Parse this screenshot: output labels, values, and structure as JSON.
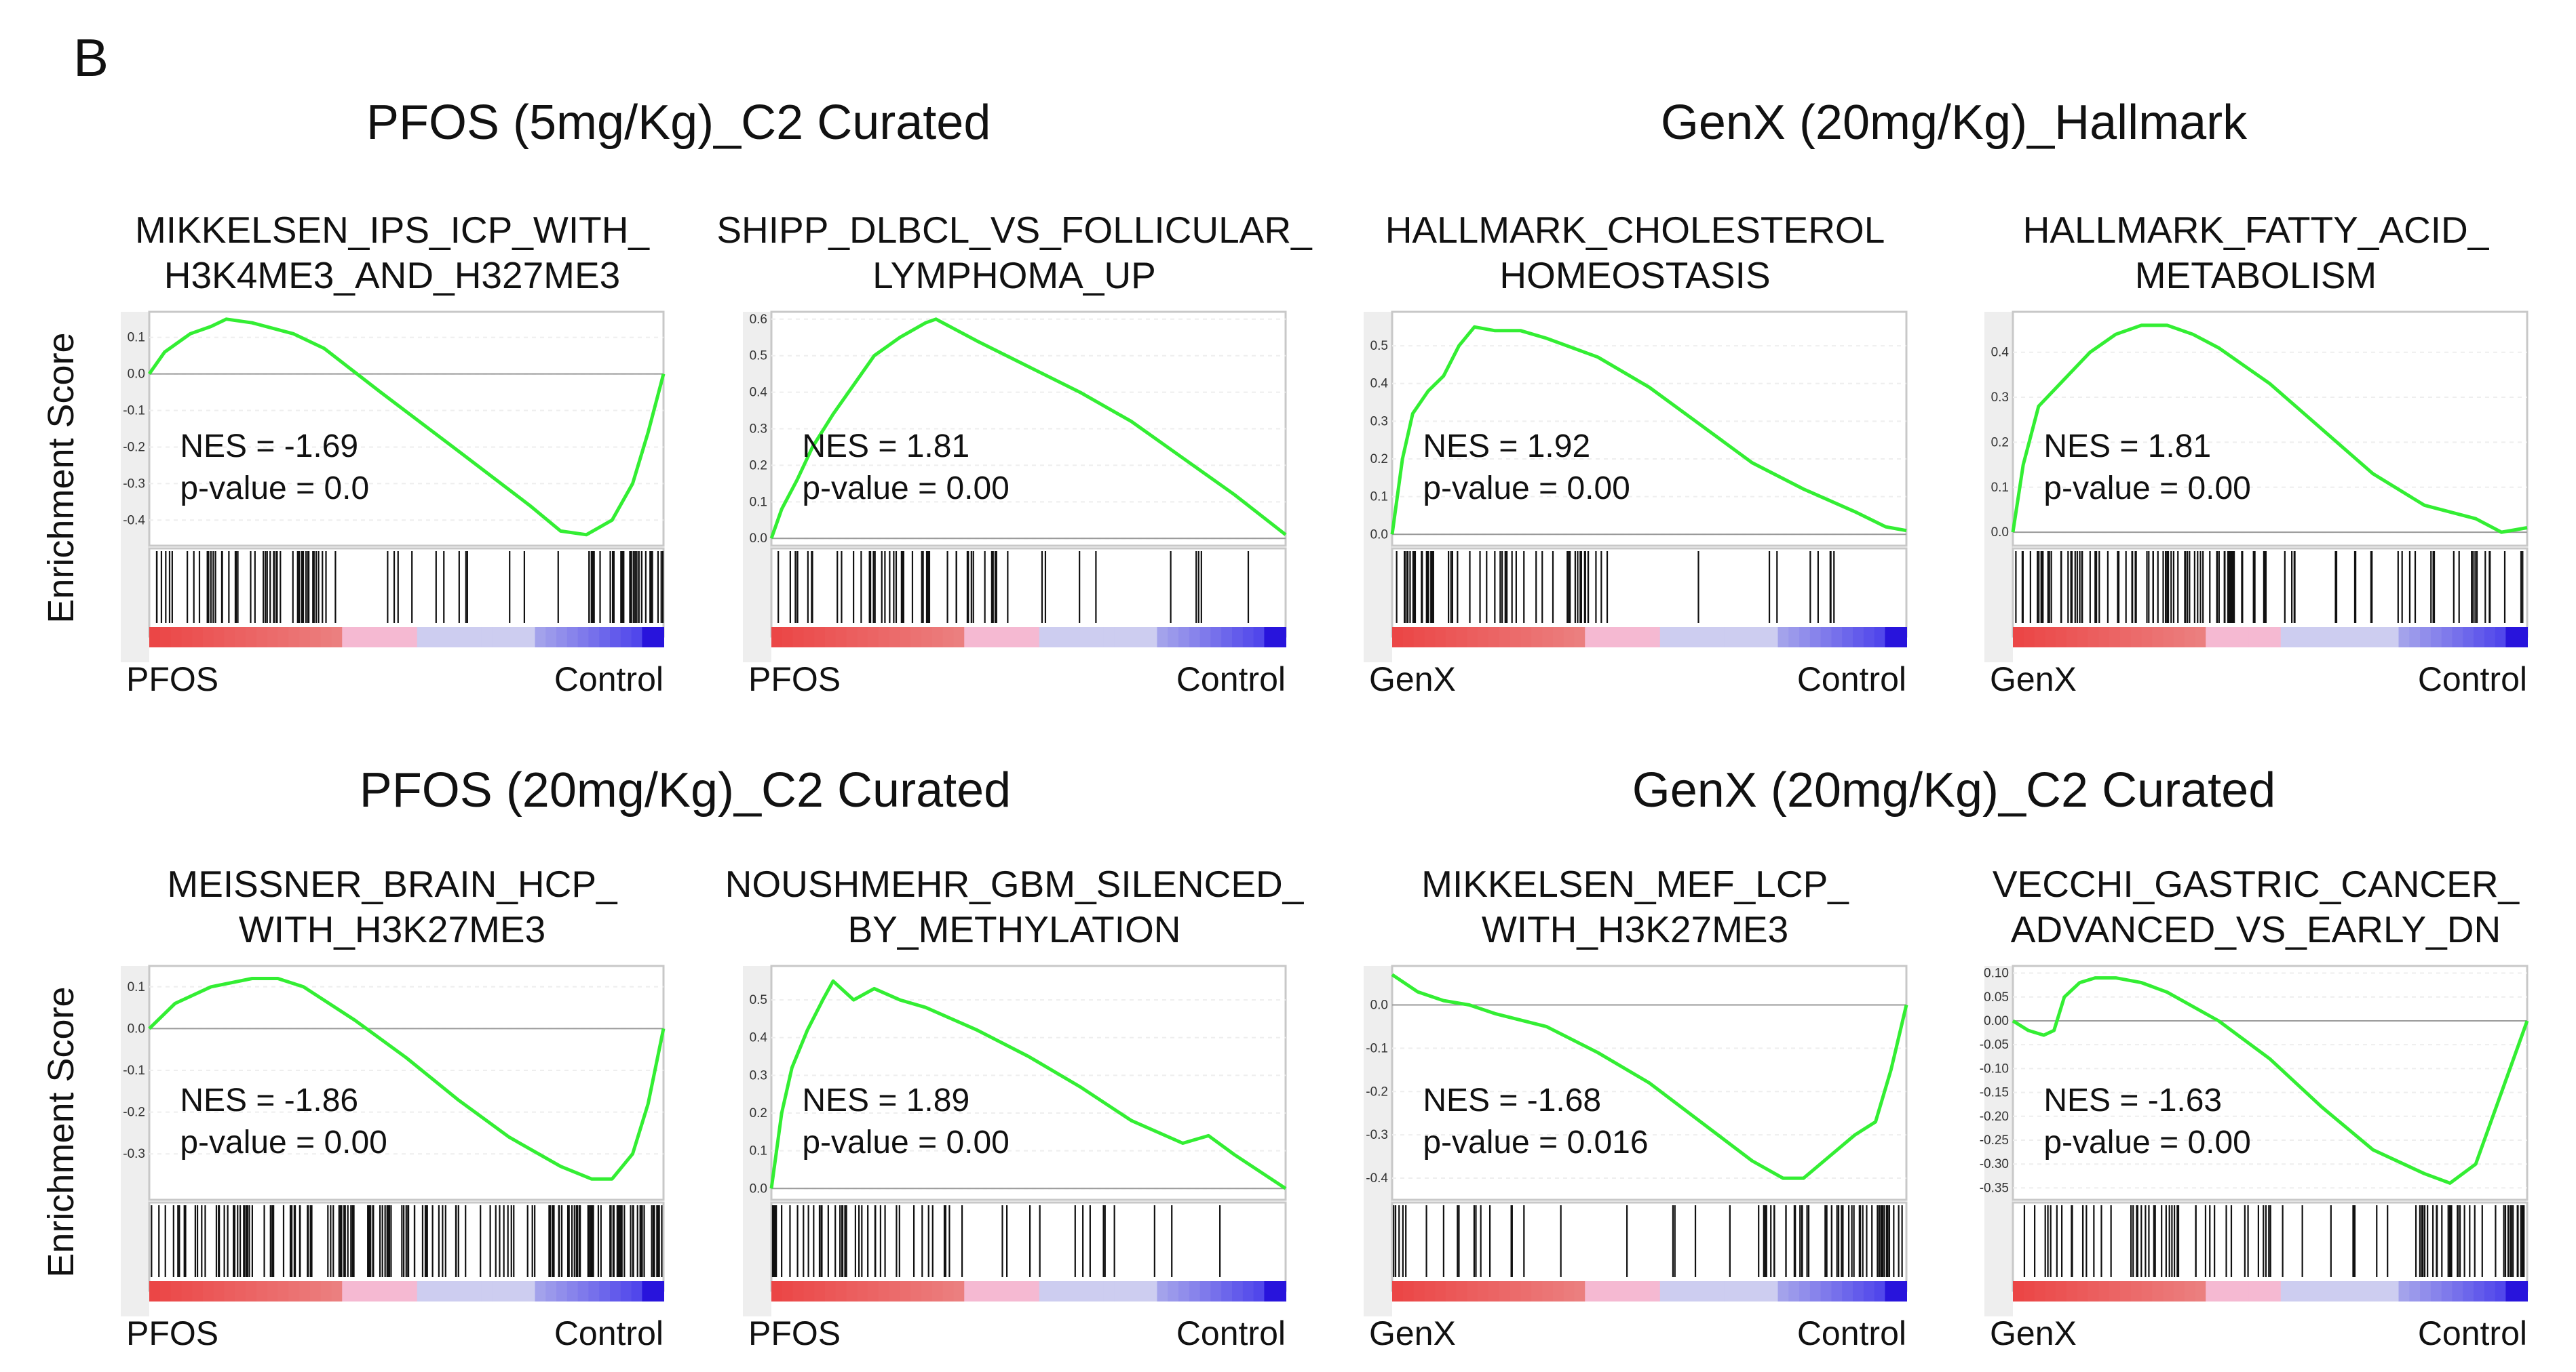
{
  "panel_letter": "B",
  "colors": {
    "curve": "#33ee33",
    "hit": "#111111",
    "frame": "#c8c8c8",
    "zero": "#9a9a9a"
  },
  "group_titles": [
    "PFOS (5mg/Kg)_C2 Curated",
    "GenX (20mg/Kg)_Hallmark",
    "PFOS (20mg/Kg)_C2 Curated",
    "GenX (20mg/Kg)_C2 Curated"
  ],
  "ylabel": "Enrichment Score",
  "chart_data": [
    {
      "type": "line",
      "title_lines": [
        "MIKKELSEN_IPS_ICP_WITH_",
        "H3K4ME3_AND_H327ME3"
      ],
      "nes": "NES = -1.69",
      "pvalue": "p-value = 0.0",
      "xlabel_left": "PFOS",
      "xlabel_right": "Control",
      "ylim": [
        -0.47,
        0.17
      ],
      "yticks": [
        0.1,
        0.0,
        -0.1,
        -0.2,
        -0.3,
        -0.4
      ],
      "ytick_labels": [
        "0.1",
        "0.0",
        "-0.1",
        "-0.2",
        "-0.3",
        "-0.4"
      ],
      "curve": [
        [
          0,
          0.0
        ],
        [
          0.03,
          0.06
        ],
        [
          0.08,
          0.11
        ],
        [
          0.12,
          0.13
        ],
        [
          0.15,
          0.15
        ],
        [
          0.2,
          0.14
        ],
        [
          0.28,
          0.11
        ],
        [
          0.34,
          0.07
        ],
        [
          0.45,
          -0.05
        ],
        [
          0.6,
          -0.21
        ],
        [
          0.74,
          -0.36
        ],
        [
          0.8,
          -0.43
        ],
        [
          0.85,
          -0.44
        ],
        [
          0.9,
          -0.4
        ],
        [
          0.94,
          -0.3
        ],
        [
          0.97,
          -0.16
        ],
        [
          1.0,
          0.0
        ]
      ],
      "hit_dens": [
        [
          0,
          0.38,
          0.34
        ],
        [
          0.38,
          0.85,
          0.07
        ],
        [
          0.85,
          1.0,
          0.6
        ]
      ]
    },
    {
      "type": "line",
      "title_lines": [
        "SHIPP_DLBCL_VS_FOLLICULAR_",
        "LYMPHOMA_UP"
      ],
      "nes": "NES = 1.81",
      "pvalue": "p-value = 0.00",
      "xlabel_left": "PFOS",
      "xlabel_right": "Control",
      "ylim": [
        -0.02,
        0.62
      ],
      "yticks": [
        0.6,
        0.5,
        0.4,
        0.3,
        0.2,
        0.1,
        0.0
      ],
      "ytick_labels": [
        "0.6",
        "0.5",
        "0.4",
        "0.3",
        "0.2",
        "0.1",
        "0.0"
      ],
      "curve": [
        [
          0,
          0.0
        ],
        [
          0.02,
          0.08
        ],
        [
          0.05,
          0.16
        ],
        [
          0.08,
          0.25
        ],
        [
          0.12,
          0.34
        ],
        [
          0.16,
          0.42
        ],
        [
          0.2,
          0.5
        ],
        [
          0.25,
          0.55
        ],
        [
          0.3,
          0.59
        ],
        [
          0.32,
          0.6
        ],
        [
          0.4,
          0.54
        ],
        [
          0.5,
          0.47
        ],
        [
          0.6,
          0.4
        ],
        [
          0.7,
          0.32
        ],
        [
          0.8,
          0.22
        ],
        [
          0.9,
          0.12
        ],
        [
          1.0,
          0.01
        ]
      ],
      "hit_dens": [
        [
          0,
          0.45,
          0.26
        ],
        [
          0.45,
          0.85,
          0.06
        ],
        [
          0.85,
          1.0,
          0.01
        ]
      ]
    },
    {
      "type": "line",
      "title_lines": [
        "HALLMARK_CHOLESTEROL",
        "HOMEOSTASIS"
      ],
      "nes": "NES = 1.92",
      "pvalue": "p-value = 0.00",
      "xlabel_left": "GenX",
      "xlabel_right": "Control",
      "ylim": [
        -0.03,
        0.59
      ],
      "yticks": [
        0.5,
        0.4,
        0.3,
        0.2,
        0.1,
        0.0
      ],
      "ytick_labels": [
        "0.5",
        "0.4",
        "0.3",
        "0.2",
        "0.1",
        "0.0"
      ],
      "curve": [
        [
          0,
          0.0
        ],
        [
          0.02,
          0.2
        ],
        [
          0.04,
          0.32
        ],
        [
          0.07,
          0.38
        ],
        [
          0.1,
          0.42
        ],
        [
          0.13,
          0.5
        ],
        [
          0.16,
          0.55
        ],
        [
          0.2,
          0.54
        ],
        [
          0.25,
          0.54
        ],
        [
          0.3,
          0.52
        ],
        [
          0.4,
          0.47
        ],
        [
          0.5,
          0.39
        ],
        [
          0.6,
          0.29
        ],
        [
          0.7,
          0.19
        ],
        [
          0.8,
          0.12
        ],
        [
          0.9,
          0.06
        ],
        [
          0.96,
          0.02
        ],
        [
          1.0,
          0.01
        ]
      ],
      "hit_dens": [
        [
          0,
          0.42,
          0.32
        ],
        [
          0.42,
          0.7,
          0.01
        ],
        [
          0.7,
          1.0,
          0.06
        ]
      ]
    },
    {
      "type": "line",
      "title_lines": [
        "HALLMARK_FATTY_ACID_",
        "METABOLISM"
      ],
      "nes": "NES = 1.81",
      "pvalue": "p-value = 0.00",
      "xlabel_left": "GenX",
      "xlabel_right": "Control",
      "ylim": [
        -0.03,
        0.49
      ],
      "yticks": [
        0.4,
        0.3,
        0.2,
        0.1,
        0.0
      ],
      "ytick_labels": [
        "0.4",
        "0.3",
        "0.2",
        "0.1",
        "0.0"
      ],
      "curve": [
        [
          0,
          0.0
        ],
        [
          0.02,
          0.15
        ],
        [
          0.05,
          0.28
        ],
        [
          0.1,
          0.34
        ],
        [
          0.15,
          0.4
        ],
        [
          0.2,
          0.44
        ],
        [
          0.25,
          0.46
        ],
        [
          0.3,
          0.46
        ],
        [
          0.35,
          0.44
        ],
        [
          0.4,
          0.41
        ],
        [
          0.5,
          0.33
        ],
        [
          0.6,
          0.23
        ],
        [
          0.7,
          0.13
        ],
        [
          0.8,
          0.06
        ],
        [
          0.9,
          0.03
        ],
        [
          0.95,
          0.0
        ],
        [
          1.0,
          0.01
        ]
      ],
      "hit_dens": [
        [
          0,
          0.5,
          0.42
        ],
        [
          0.5,
          0.8,
          0.12
        ],
        [
          0.8,
          1.0,
          0.2
        ]
      ]
    },
    {
      "type": "line",
      "title_lines": [
        "MEISSNER_BRAIN_HCP_",
        "WITH_H3K27ME3"
      ],
      "nes": "NES = -1.86",
      "pvalue": "p-value = 0.00",
      "xlabel_left": "PFOS",
      "xlabel_right": "Control",
      "ylim": [
        -0.41,
        0.15
      ],
      "yticks": [
        0.1,
        0.0,
        -0.1,
        -0.2,
        -0.3
      ],
      "ytick_labels": [
        "0.1",
        "0.0",
        "-0.1",
        "-0.2",
        "-0.3"
      ],
      "curve": [
        [
          0,
          0.0
        ],
        [
          0.05,
          0.06
        ],
        [
          0.12,
          0.1
        ],
        [
          0.2,
          0.12
        ],
        [
          0.25,
          0.12
        ],
        [
          0.3,
          0.1
        ],
        [
          0.4,
          0.02
        ],
        [
          0.5,
          -0.07
        ],
        [
          0.6,
          -0.17
        ],
        [
          0.7,
          -0.26
        ],
        [
          0.8,
          -0.33
        ],
        [
          0.86,
          -0.36
        ],
        [
          0.9,
          -0.36
        ],
        [
          0.94,
          -0.3
        ],
        [
          0.97,
          -0.18
        ],
        [
          1.0,
          0.0
        ]
      ],
      "hit_dens": [
        [
          0,
          0.55,
          0.4
        ],
        [
          0.55,
          0.78,
          0.24
        ],
        [
          0.78,
          1.0,
          0.7
        ]
      ]
    },
    {
      "type": "line",
      "title_lines": [
        "NOUSHMEHR_GBM_SILENCED_",
        "BY_METHYLATION"
      ],
      "nes": "NES = 1.89",
      "pvalue": "p-value = 0.00",
      "xlabel_left": "PFOS",
      "xlabel_right": "Control",
      "ylim": [
        -0.03,
        0.59
      ],
      "yticks": [
        0.5,
        0.4,
        0.3,
        0.2,
        0.1,
        0.0
      ],
      "ytick_labels": [
        "0.5",
        "0.4",
        "0.3",
        "0.2",
        "0.1",
        "0.0"
      ],
      "curve": [
        [
          0,
          0.0
        ],
        [
          0.02,
          0.2
        ],
        [
          0.04,
          0.32
        ],
        [
          0.07,
          0.42
        ],
        [
          0.1,
          0.5
        ],
        [
          0.12,
          0.55
        ],
        [
          0.16,
          0.5
        ],
        [
          0.2,
          0.53
        ],
        [
          0.25,
          0.5
        ],
        [
          0.3,
          0.48
        ],
        [
          0.4,
          0.42
        ],
        [
          0.5,
          0.35
        ],
        [
          0.6,
          0.27
        ],
        [
          0.7,
          0.18
        ],
        [
          0.8,
          0.12
        ],
        [
          0.85,
          0.14
        ],
        [
          0.9,
          0.09
        ],
        [
          1.0,
          0.0
        ]
      ],
      "hit_dens": [
        [
          0,
          0.35,
          0.3
        ],
        [
          0.35,
          0.7,
          0.08
        ],
        [
          0.7,
          1.0,
          0.03
        ]
      ]
    },
    {
      "type": "line",
      "title_lines": [
        "MIKKELSEN_MEF_LCP_",
        "WITH_H3K27ME3"
      ],
      "nes": "NES = -1.68",
      "pvalue": "p-value = 0.016",
      "xlabel_left": "GenX",
      "xlabel_right": "Control",
      "ylim": [
        -0.45,
        0.09
      ],
      "yticks": [
        0.0,
        -0.1,
        -0.2,
        -0.3,
        -0.4
      ],
      "ytick_labels": [
        "0.0",
        "-0.1",
        "-0.2",
        "-0.3",
        "-0.4"
      ],
      "curve": [
        [
          0,
          0.07
        ],
        [
          0.05,
          0.03
        ],
        [
          0.1,
          0.01
        ],
        [
          0.15,
          0.0
        ],
        [
          0.2,
          -0.02
        ],
        [
          0.3,
          -0.05
        ],
        [
          0.4,
          -0.11
        ],
        [
          0.5,
          -0.18
        ],
        [
          0.6,
          -0.27
        ],
        [
          0.7,
          -0.36
        ],
        [
          0.76,
          -0.4
        ],
        [
          0.8,
          -0.4
        ],
        [
          0.85,
          -0.35
        ],
        [
          0.9,
          -0.3
        ],
        [
          0.94,
          -0.27
        ],
        [
          0.97,
          -0.15
        ],
        [
          1.0,
          0.0
        ]
      ],
      "hit_dens": [
        [
          0,
          0.3,
          0.14
        ],
        [
          0.3,
          0.7,
          0.04
        ],
        [
          0.7,
          1.0,
          0.42
        ]
      ]
    },
    {
      "type": "line",
      "title_lines": [
        "VECCHI_GASTRIC_CANCER_",
        "ADVANCED_VS_EARLY_DN"
      ],
      "nes": "NES = -1.63",
      "pvalue": "p-value = 0.00",
      "xlabel_left": "GenX",
      "xlabel_right": "Control",
      "ylim": [
        -0.375,
        0.115
      ],
      "yticks": [
        0.1,
        0.05,
        0.0,
        -0.05,
        -0.1,
        -0.15,
        -0.2,
        -0.25,
        -0.3,
        -0.35
      ],
      "ytick_labels": [
        "0.10",
        "0.05",
        "0.00",
        "-0.05",
        "-0.10",
        "-0.15",
        "-0.20",
        "-0.25",
        "-0.30",
        "-0.35"
      ],
      "curve": [
        [
          0,
          0.0
        ],
        [
          0.03,
          -0.02
        ],
        [
          0.06,
          -0.03
        ],
        [
          0.08,
          -0.02
        ],
        [
          0.1,
          0.05
        ],
        [
          0.13,
          0.08
        ],
        [
          0.16,
          0.09
        ],
        [
          0.2,
          0.09
        ],
        [
          0.25,
          0.08
        ],
        [
          0.3,
          0.06
        ],
        [
          0.4,
          0.0
        ],
        [
          0.5,
          -0.08
        ],
        [
          0.6,
          -0.18
        ],
        [
          0.7,
          -0.27
        ],
        [
          0.8,
          -0.32
        ],
        [
          0.85,
          -0.34
        ],
        [
          0.9,
          -0.3
        ],
        [
          0.95,
          -0.15
        ],
        [
          1.0,
          0.0
        ]
      ],
      "hit_dens": [
        [
          0,
          0.55,
          0.22
        ],
        [
          0.55,
          0.78,
          0.08
        ],
        [
          0.78,
          1.0,
          0.45
        ]
      ]
    }
  ]
}
